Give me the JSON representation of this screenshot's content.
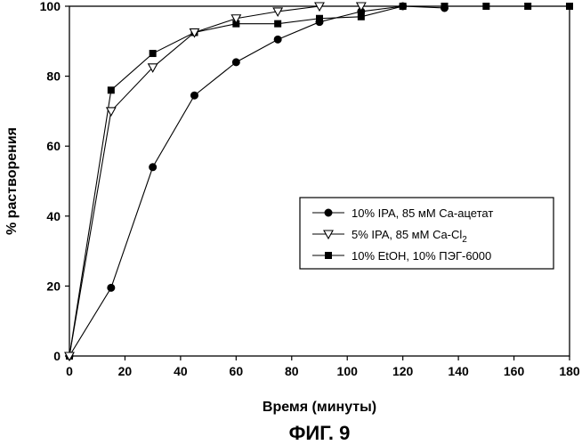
{
  "chart_data": {
    "type": "line",
    "xlabel": "Время (минуты)",
    "ylabel": "% растворения",
    "caption": "ФИГ. 9",
    "xlim": [
      0,
      180
    ],
    "ylim": [
      0,
      100
    ],
    "xticks": [
      0,
      20,
      40,
      60,
      80,
      100,
      120,
      140,
      160,
      180
    ],
    "yticks": [
      0,
      20,
      40,
      60,
      80,
      100
    ],
    "grid": false,
    "legend_position": "center-right",
    "series": [
      {
        "name": "10% IPA, 85 мМ Ca-ацетат",
        "name_sub": "",
        "name_tail": "",
        "marker": "filled-circle",
        "x": [
          0,
          15,
          30,
          45,
          60,
          75,
          90,
          105,
          120,
          135
        ],
        "y": [
          0,
          19.5,
          54,
          74.5,
          84,
          90.5,
          95.5,
          98.5,
          100,
          99.5
        ]
      },
      {
        "name": "5% IPA, 85 мМ Ca-Cl",
        "name_sub": "2",
        "name_tail": "",
        "marker": "open-triangle-down",
        "x": [
          0,
          15,
          30,
          45,
          60,
          75,
          90,
          105
        ],
        "y": [
          0,
          70,
          82.5,
          92.5,
          96.5,
          98.5,
          100,
          100
        ]
      },
      {
        "name": "10% EtOH, 10% ПЭГ-6000",
        "name_sub": "",
        "name_tail": "",
        "marker": "filled-square",
        "x": [
          0,
          15,
          30,
          45,
          60,
          75,
          90,
          105,
          120,
          135,
          150,
          165,
          180
        ],
        "y": [
          0,
          76,
          86.5,
          92.5,
          95,
          95,
          96.5,
          97,
          100,
          100,
          100,
          100,
          100
        ]
      }
    ]
  }
}
